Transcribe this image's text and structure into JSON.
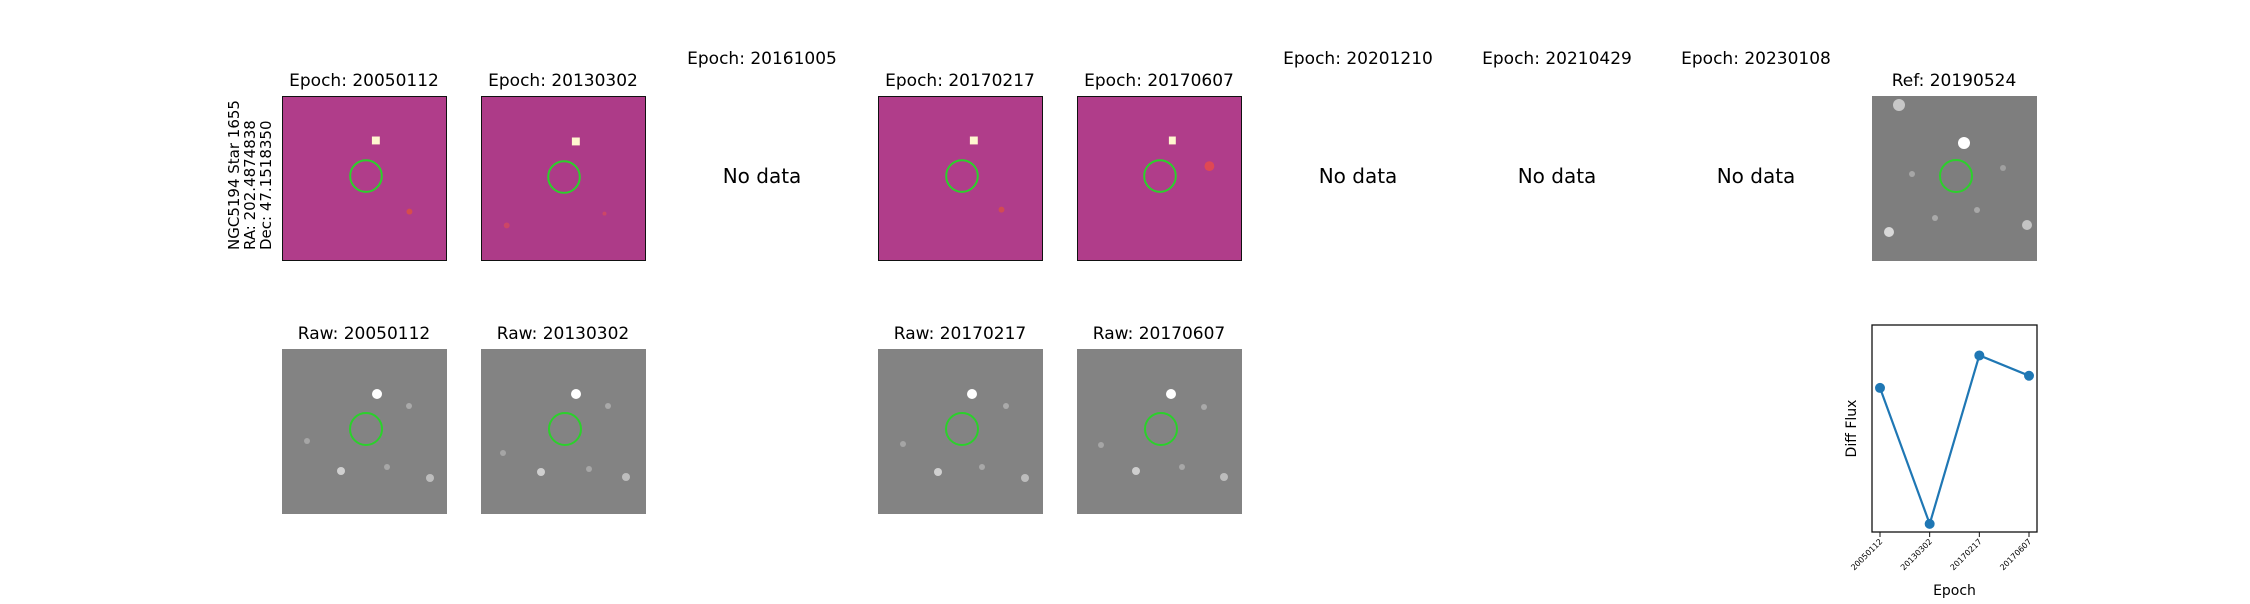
{
  "row_label": {
    "line1": "NGC5194 Star 1655",
    "line2": "RA: 202.4874838",
    "line3": "Dec: 47.1518350"
  },
  "diff_row": [
    {
      "title": "Epoch: 20050112",
      "has_data": true
    },
    {
      "title": "Epoch: 20130302",
      "has_data": true
    },
    {
      "title": "Epoch: 20161005",
      "has_data": false,
      "no_data_text": "No data"
    },
    {
      "title": "Epoch: 20170217",
      "has_data": true
    },
    {
      "title": "Epoch: 20170607",
      "has_data": true
    },
    {
      "title": "Epoch: 20201210",
      "has_data": false,
      "no_data_text": "No data"
    },
    {
      "title": "Epoch: 20210429",
      "has_data": false,
      "no_data_text": "No data"
    },
    {
      "title": "Epoch: 20230108",
      "has_data": false,
      "no_data_text": "No data"
    }
  ],
  "reference": {
    "title": "Ref: 20190524"
  },
  "raw_row": [
    {
      "title": "Raw: 20050112"
    },
    {
      "title": "Raw: 20130302"
    },
    {
      "title": "Raw: 20170217"
    },
    {
      "title": "Raw: 20170607"
    }
  ],
  "colors": {
    "diff_background": "#b03d8a",
    "raw_background": "#828282",
    "aperture": "#2bd12b",
    "series": "#1f77b4"
  },
  "chart_data": {
    "type": "line",
    "title": "",
    "xlabel": "Epoch",
    "ylabel": "Diff Flux",
    "x": [
      "20050112",
      "20130302",
      "20170217",
      "20170607"
    ],
    "series": [
      {
        "values": [
          0.61,
          -0.06,
          0.77,
          0.67
        ]
      }
    ],
    "ylim": [
      -0.1,
      0.92
    ],
    "y_ticks_shown": false,
    "grid": false,
    "legend": "none"
  }
}
